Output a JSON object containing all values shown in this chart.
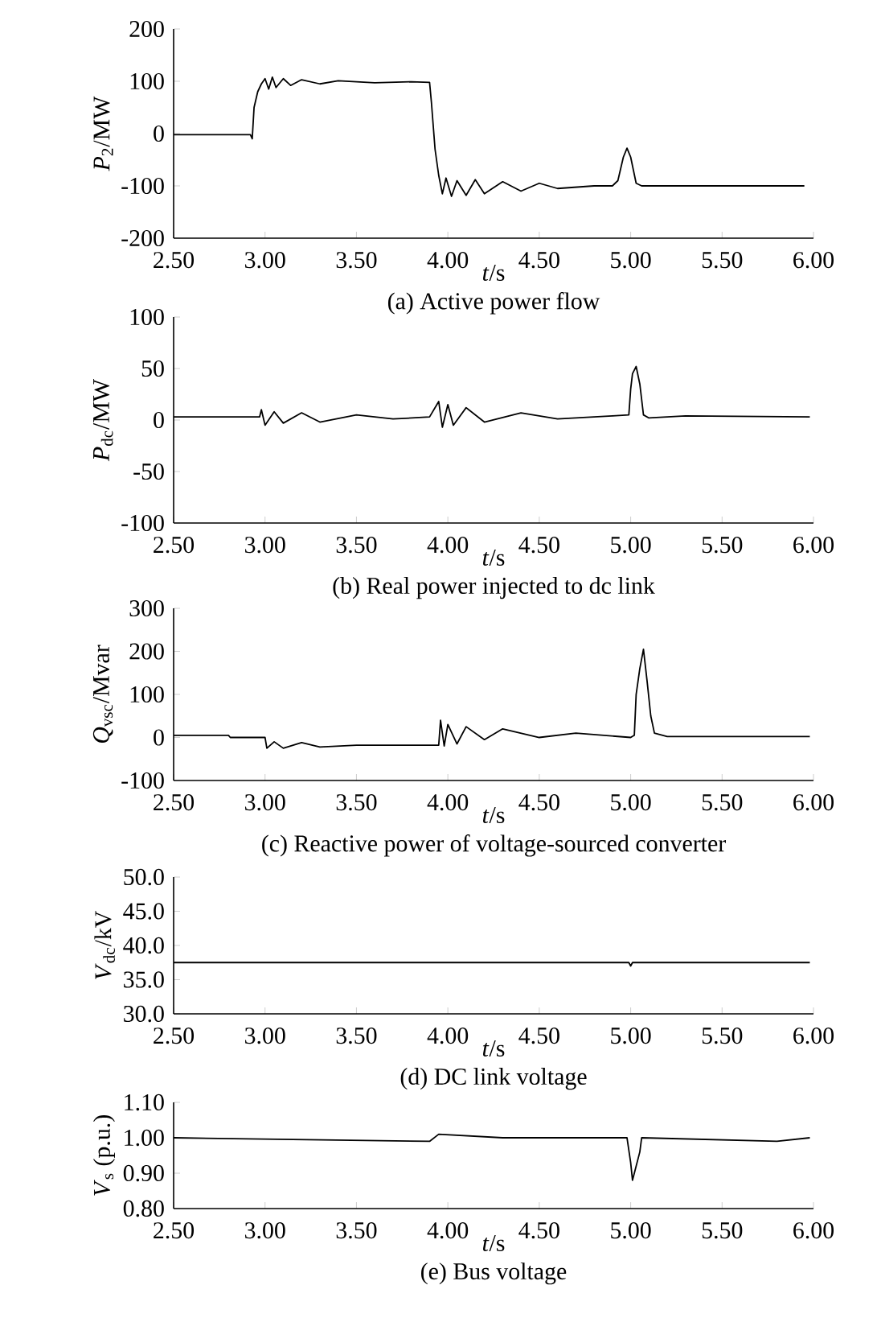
{
  "chart_data": [
    {
      "type": "line",
      "title": "(a) Active power flow",
      "xlabel": "*t*/s",
      "ylabel": "*P*$_{2}$/MW",
      "xlim": [
        2.5,
        6.0
      ],
      "xticks": [
        {
          "value": 2.5,
          "label": "2.50"
        },
        {
          "value": 3.0,
          "label": "3.00"
        },
        {
          "value": 3.5,
          "label": "3.50"
        },
        {
          "value": 4.0,
          "label": "4.00"
        },
        {
          "value": 4.5,
          "label": "4.50"
        },
        {
          "value": 5.0,
          "label": "5.00"
        },
        {
          "value": 5.5,
          "label": "5.50"
        },
        {
          "value": 6.0,
          "label": "6.00"
        }
      ],
      "ylim": [
        -200,
        200
      ],
      "yticks": [
        -200,
        -100,
        0,
        100,
        200
      ],
      "series": [
        {
          "color": "#000000",
          "x": [
            2.5,
            2.92,
            2.93,
            2.94,
            2.96,
            2.98,
            3.0,
            3.02,
            3.04,
            3.06,
            3.1,
            3.14,
            3.2,
            3.3,
            3.4,
            3.6,
            3.8,
            3.9,
            3.91,
            3.93,
            3.95,
            3.97,
            3.99,
            4.02,
            4.05,
            4.1,
            4.15,
            4.2,
            4.3,
            4.4,
            4.5,
            4.6,
            4.8,
            4.9,
            4.93,
            4.96,
            4.98,
            5.0,
            5.03,
            5.06,
            5.5,
            5.95
          ],
          "values": [
            -2,
            -2,
            -10,
            50,
            80,
            95,
            105,
            85,
            108,
            88,
            105,
            92,
            103,
            95,
            101,
            97,
            99,
            98,
            60,
            -30,
            -80,
            -115,
            -85,
            -120,
            -90,
            -118,
            -88,
            -115,
            -92,
            -110,
            -95,
            -105,
            -100,
            -100,
            -90,
            -45,
            -28,
            -45,
            -95,
            -100,
            -100,
            -100
          ]
        }
      ]
    },
    {
      "type": "line",
      "title": "(b)  Real power injected to dc link",
      "xlabel": "*t*/s",
      "ylabel": "*P*$_{dc}$/MW",
      "xlim": [
        2.5,
        6.0
      ],
      "xticks": [
        {
          "value": 2.5,
          "label": "2.50"
        },
        {
          "value": 3.0,
          "label": "3.00"
        },
        {
          "value": 3.5,
          "label": "3.50"
        },
        {
          "value": 4.0,
          "label": "4.00"
        },
        {
          "value": 4.5,
          "label": "4.50"
        },
        {
          "value": 5.0,
          "label": "5.00"
        },
        {
          "value": 5.5,
          "label": "5.50"
        },
        {
          "value": 6.0,
          "label": "6.00"
        }
      ],
      "ylim": [
        -100,
        100
      ],
      "yticks": [
        -100,
        -50,
        0,
        50,
        100
      ],
      "series": [
        {
          "color": "#000000",
          "x": [
            2.5,
            2.97,
            2.98,
            3.0,
            3.05,
            3.1,
            3.2,
            3.3,
            3.5,
            3.7,
            3.9,
            3.95,
            3.97,
            4.0,
            4.03,
            4.1,
            4.2,
            4.4,
            4.6,
            4.9,
            4.99,
            5.0,
            5.01,
            5.03,
            5.05,
            5.07,
            5.1,
            5.3,
            5.98
          ],
          "values": [
            3,
            3,
            10,
            -5,
            8,
            -3,
            7,
            -2,
            5,
            1,
            3,
            18,
            -7,
            15,
            -5,
            12,
            -2,
            7,
            1,
            4,
            5,
            30,
            45,
            52,
            35,
            5,
            2,
            4,
            3
          ]
        }
      ]
    },
    {
      "type": "line",
      "title": "(c) Reactive power of  voltage-sourced converter",
      "xlabel": "*t*/s",
      "ylabel": "*Q*$_{vsc}$/Mvar",
      "xlim": [
        2.5,
        6.0
      ],
      "xticks": [
        {
          "value": 2.5,
          "label": "2.50"
        },
        {
          "value": 3.0,
          "label": "3.00"
        },
        {
          "value": 3.5,
          "label": "3.50"
        },
        {
          "value": 4.0,
          "label": "4.00"
        },
        {
          "value": 4.5,
          "label": "4.50"
        },
        {
          "value": 5.0,
          "label": "5.00"
        },
        {
          "value": 5.5,
          "label": "5.50"
        },
        {
          "value": 6.0,
          "label": "6.00"
        }
      ],
      "ylim": [
        -100,
        300
      ],
      "yticks": [
        -100,
        0,
        100,
        200,
        300
      ],
      "series": [
        {
          "color": "#000000",
          "x": [
            2.5,
            2.8,
            2.81,
            3.0,
            3.01,
            3.05,
            3.1,
            3.2,
            3.3,
            3.5,
            3.95,
            3.96,
            3.98,
            4.0,
            4.05,
            4.1,
            4.2,
            4.3,
            4.5,
            4.7,
            5.0,
            5.02,
            5.03,
            5.05,
            5.07,
            5.09,
            5.11,
            5.13,
            5.2,
            5.98
          ],
          "values": [
            5,
            5,
            0,
            0,
            -25,
            -10,
            -25,
            -12,
            -22,
            -18,
            -18,
            40,
            -20,
            30,
            -15,
            25,
            -5,
            20,
            0,
            10,
            0,
            5,
            100,
            160,
            205,
            130,
            50,
            10,
            2,
            2
          ]
        }
      ]
    },
    {
      "type": "line",
      "title": "(d) DC link voltage",
      "xlabel": "*t*/s",
      "ylabel": "*V*$_{dc}$/kV",
      "xlim": [
        2.5,
        6.0
      ],
      "xticks": [
        {
          "value": 2.5,
          "label": "2.50"
        },
        {
          "value": 3.0,
          "label": "3.00"
        },
        {
          "value": 3.5,
          "label": "3.50"
        },
        {
          "value": 4.0,
          "label": "4.00"
        },
        {
          "value": 4.5,
          "label": "4.50"
        },
        {
          "value": 5.0,
          "label": "5.00"
        },
        {
          "value": 5.5,
          "label": "5.50"
        },
        {
          "value": 6.0,
          "label": "6.00"
        }
      ],
      "ylim": [
        30,
        50
      ],
      "yticks": [
        {
          "value": 30,
          "label": "30.0"
        },
        {
          "value": 35,
          "label": "35.0"
        },
        {
          "value": 40,
          "label": "40.0"
        },
        {
          "value": 45,
          "label": "45.0"
        },
        {
          "value": 50,
          "label": "50.0"
        }
      ],
      "series": [
        {
          "color": "#000000",
          "x": [
            2.5,
            4.99,
            5.0,
            5.01,
            5.98
          ],
          "values": [
            37.5,
            37.5,
            37.0,
            37.5,
            37.5
          ]
        }
      ]
    },
    {
      "type": "line",
      "title": "(e) Bus voltage",
      "xlabel": "*t*/s",
      "ylabel": "*V*$_{s}$ (p.u.)",
      "xlim": [
        2.5,
        6.0
      ],
      "xticks": [
        {
          "value": 2.5,
          "label": "2.50"
        },
        {
          "value": 3.0,
          "label": "3.00"
        },
        {
          "value": 3.5,
          "label": "3.50"
        },
        {
          "value": 4.0,
          "label": "4.00"
        },
        {
          "value": 4.5,
          "label": "4.50"
        },
        {
          "value": 5.0,
          "label": "5.00"
        },
        {
          "value": 5.5,
          "label": "5.50"
        },
        {
          "value": 6.0,
          "label": "6.00"
        }
      ],
      "ylim": [
        0.8,
        1.1
      ],
      "yticks": [
        {
          "value": 0.8,
          "label": "0.80"
        },
        {
          "value": 0.9,
          "label": "0.90"
        },
        {
          "value": 1.0,
          "label": "1.00"
        },
        {
          "value": 1.1,
          "label": "1.10"
        }
      ],
      "series": [
        {
          "color": "#000000",
          "x": [
            2.5,
            3.9,
            3.95,
            4.3,
            4.98,
            5.0,
            5.01,
            5.03,
            5.05,
            5.06,
            5.8,
            5.98
          ],
          "values": [
            1.0,
            0.99,
            1.01,
            1.0,
            1.0,
            0.93,
            0.88,
            0.92,
            0.96,
            1.0,
            0.99,
            1.0
          ]
        }
      ]
    }
  ]
}
